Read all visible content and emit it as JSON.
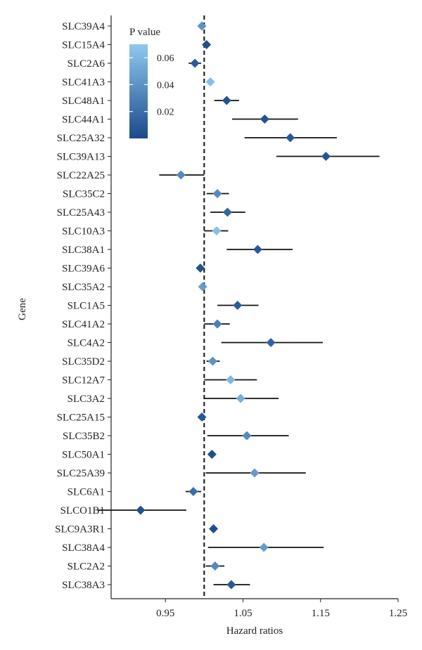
{
  "chart_data": {
    "type": "forest",
    "xlabel": "Hazard ratios",
    "ylabel": "Gene",
    "xlim": [
      0.88,
      1.25
    ],
    "xticks": [
      0.95,
      1.05,
      1.15,
      1.25
    ],
    "reference_line": 1.0,
    "legend": {
      "title": "P value",
      "ticks": [
        0.06,
        0.04,
        0.02
      ],
      "range": [
        0.0,
        0.07
      ],
      "color_low": "#1a4a8a",
      "color_high": "#8ec9f0",
      "placement": "top-left"
    },
    "genes": [
      {
        "gene": "SLC39A4",
        "hr": 0.997,
        "lo": 0.994,
        "hi": 1.001,
        "p": 0.04
      },
      {
        "gene": "SLC15A4",
        "hr": 1.003,
        "lo": 1.001,
        "hi": 1.006,
        "p": 0.003
      },
      {
        "gene": "SLC2A6",
        "hr": 0.988,
        "lo": 0.98,
        "hi": 0.996,
        "p": 0.01
      },
      {
        "gene": "SLC41A3",
        "hr": 1.008,
        "lo": 1.005,
        "hi": 1.011,
        "p": 0.065
      },
      {
        "gene": "SLC48A1",
        "hr": 1.029,
        "lo": 1.013,
        "hi": 1.045,
        "p": 0.005
      },
      {
        "gene": "SLC44A1",
        "hr": 1.078,
        "lo": 1.036,
        "hi": 1.121,
        "p": 0.004
      },
      {
        "gene": "SLC25A32",
        "hr": 1.111,
        "lo": 1.052,
        "hi": 1.171,
        "p": 0.008
      },
      {
        "gene": "SLC39A13",
        "hr": 1.157,
        "lo": 1.093,
        "hi": 1.226,
        "p": 0.006
      },
      {
        "gene": "SLC22A25",
        "hr": 0.97,
        "lo": 0.942,
        "hi": 1.0,
        "p": 0.035
      },
      {
        "gene": "SLC35C2",
        "hr": 1.017,
        "lo": 1.003,
        "hi": 1.032,
        "p": 0.035
      },
      {
        "gene": "SLC25A43",
        "hr": 1.03,
        "lo": 1.008,
        "hi": 1.053,
        "p": 0.015
      },
      {
        "gene": "SLC10A3",
        "hr": 1.016,
        "lo": 1.0,
        "hi": 1.031,
        "p": 0.065
      },
      {
        "gene": "SLC38A1",
        "hr": 1.069,
        "lo": 1.029,
        "hi": 1.114,
        "p": 0.008
      },
      {
        "gene": "SLC39A6",
        "hr": 0.995,
        "lo": 0.991,
        "hi": 0.999,
        "p": 0.005
      },
      {
        "gene": "SLC35A2",
        "hr": 0.998,
        "lo": 0.996,
        "hi": 1.001,
        "p": 0.045
      },
      {
        "gene": "SLC1A5",
        "hr": 1.043,
        "lo": 1.017,
        "hi": 1.07,
        "p": 0.01
      },
      {
        "gene": "SLC41A2",
        "hr": 1.017,
        "lo": 1.0,
        "hi": 1.033,
        "p": 0.03
      },
      {
        "gene": "SLC4A2",
        "hr": 1.086,
        "lo": 1.022,
        "hi": 1.153,
        "p": 0.015
      },
      {
        "gene": "SLC35D2",
        "hr": 1.011,
        "lo": 1.003,
        "hi": 1.02,
        "p": 0.04
      },
      {
        "gene": "SLC12A7",
        "hr": 1.034,
        "lo": 1.0,
        "hi": 1.068,
        "p": 0.06
      },
      {
        "gene": "SLC3A2",
        "hr": 1.047,
        "lo": 1.0,
        "hi": 1.096,
        "p": 0.055
      },
      {
        "gene": "SLC25A15",
        "hr": 0.997,
        "lo": 0.994,
        "hi": 1.0,
        "p": 0.008
      },
      {
        "gene": "SLC35B2",
        "hr": 1.055,
        "lo": 1.004,
        "hi": 1.109,
        "p": 0.035
      },
      {
        "gene": "SLC50A1",
        "hr": 1.01,
        "lo": 1.007,
        "hi": 1.013,
        "p": 0.003
      },
      {
        "gene": "SLC25A39",
        "hr": 1.065,
        "lo": 1.002,
        "hi": 1.131,
        "p": 0.045
      },
      {
        "gene": "SLC6A1",
        "hr": 0.986,
        "lo": 0.976,
        "hi": 0.996,
        "p": 0.02
      },
      {
        "gene": "SLCO1B1",
        "hr": 0.918,
        "lo": 0.863,
        "hi": 0.977,
        "p": 0.004
      },
      {
        "gene": "SLC9A3R1",
        "hr": 1.012,
        "lo": 1.009,
        "hi": 1.015,
        "p": 0.002
      },
      {
        "gene": "SLC38A4",
        "hr": 1.077,
        "lo": 1.005,
        "hi": 1.154,
        "p": 0.045
      },
      {
        "gene": "SLC2A2",
        "hr": 1.014,
        "lo": 1.002,
        "hi": 1.026,
        "p": 0.035
      },
      {
        "gene": "SLC38A3",
        "hr": 1.035,
        "lo": 1.012,
        "hi": 1.059,
        "p": 0.008
      }
    ]
  }
}
